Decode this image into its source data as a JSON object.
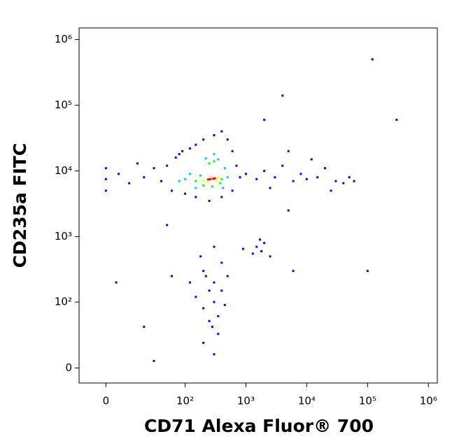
{
  "chart_data": {
    "type": "scatter",
    "x_label": "CD71 Alexa Fluor® 700",
    "y_label": "CD235a FITC",
    "xscale": "biexponential",
    "yscale": "biexponential",
    "xlim": [
      -12,
      1400000
    ],
    "ylim": [
      -11,
      1500000
    ],
    "xticks": [
      0,
      {
        "value": 100,
        "label": "10²"
      },
      {
        "value": 1000,
        "label": "10³"
      },
      {
        "value": 10000,
        "label": "10⁴"
      },
      {
        "value": 100000,
        "label": "10⁵"
      },
      {
        "value": 1000000,
        "label": "10⁶"
      }
    ],
    "yticks": [
      0,
      {
        "value": 100,
        "label": "10²"
      },
      {
        "value": 1000,
        "label": "10³"
      },
      {
        "value": 10000,
        "label": "10⁴"
      },
      {
        "value": 100000,
        "label": "10⁵"
      },
      {
        "value": 1000000,
        "label": "10⁶"
      }
    ],
    "series": [
      {
        "color": "#0000ff",
        "x": [
          0,
          5,
          10,
          20,
          30,
          40,
          50,
          60,
          70,
          90,
          120,
          150,
          200,
          300,
          400,
          500,
          600,
          700,
          800,
          600,
          400,
          250,
          150,
          100,
          80,
          0,
          0,
          15,
          1000,
          1500,
          2000,
          3000,
          4000,
          6000,
          8000,
          10000,
          15000,
          20000,
          30000,
          40000,
          50000,
          12000,
          5000,
          2500,
          25000,
          60000,
          1500,
          1800,
          2000,
          1300,
          2500,
          1700,
          900,
          200,
          250,
          300,
          350,
          200,
          300,
          400,
          150,
          250,
          350,
          300,
          200,
          500,
          180,
          280,
          400,
          300,
          120,
          450,
          220,
          120000,
          300000,
          4000,
          2000,
          30,
          20,
          60,
          4,
          100000,
          6000,
          5000,
          50
        ],
        "y": [
          7500,
          9000,
          6500,
          8000,
          11000,
          7000,
          12000,
          5000,
          16000,
          20000,
          22000,
          25000,
          30000,
          35000,
          40000,
          30000,
          20000,
          12000,
          8000,
          5000,
          4000,
          3500,
          4000,
          4500,
          18000,
          5000,
          11000,
          13000,
          9000,
          7500,
          10000,
          8000,
          12000,
          7000,
          9000,
          7500,
          8000,
          11000,
          7000,
          6500,
          8000,
          15000,
          20000,
          5500,
          5000,
          7000,
          700,
          600,
          800,
          550,
          500,
          900,
          650,
          300,
          150,
          100,
          60,
          80,
          200,
          400,
          120,
          50,
          30,
          10,
          20,
          250,
          500,
          40,
          150,
          700,
          200,
          90,
          250,
          500000,
          60000,
          140000,
          60000,
          5,
          40,
          250,
          200,
          300,
          300,
          2500,
          1500
        ]
      },
      {
        "color": "#00c8ff",
        "x": [
          100,
          120,
          500,
          350,
          220,
          150,
          420,
          450,
          300,
          80
        ],
        "y": [
          7500,
          9000,
          8000,
          15000,
          15500,
          5500,
          5500,
          11000,
          18000,
          7000
        ]
      },
      {
        "color": "#00ff00",
        "x": [
          150,
          400,
          300,
          250,
          180,
          380,
          280,
          200
        ],
        "y": [
          7000,
          7500,
          14000,
          13000,
          8500,
          6500,
          5800,
          6000
        ]
      },
      {
        "color": "#ffff00",
        "x": [
          200,
          350,
          270,
          230,
          330
        ],
        "y": [
          7200,
          7800,
          8200,
          6800,
          7000
        ]
      },
      {
        "color": "#ff0000",
        "x": [
          260,
          290,
          240,
          310
        ],
        "y": [
          7500,
          7600,
          7400,
          7700
        ]
      }
    ]
  }
}
